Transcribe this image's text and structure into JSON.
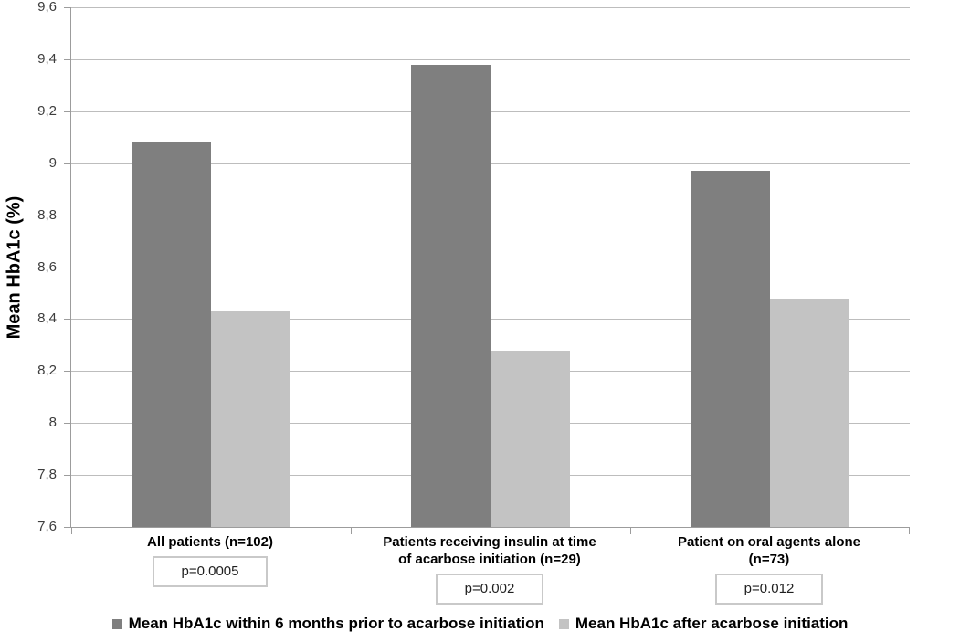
{
  "chart_data": {
    "type": "bar",
    "title": "",
    "xlabel": "",
    "ylabel": "Mean HbA1c (%)",
    "ylim": [
      7.6,
      9.6
    ],
    "grid": true,
    "legend_position": "bottom",
    "decimal_separator": ",",
    "yticks": [
      {
        "value": 7.6,
        "label": "7,6"
      },
      {
        "value": 7.8,
        "label": "7,8"
      },
      {
        "value": 8.0,
        "label": "8"
      },
      {
        "value": 8.2,
        "label": "8,2"
      },
      {
        "value": 8.4,
        "label": "8,4"
      },
      {
        "value": 8.6,
        "label": "8,6"
      },
      {
        "value": 8.8,
        "label": "8,8"
      },
      {
        "value": 9.0,
        "label": "9"
      },
      {
        "value": 9.2,
        "label": "9,2"
      },
      {
        "value": 9.4,
        "label": "9,4"
      },
      {
        "value": 9.6,
        "label": "9,6"
      }
    ],
    "categories": [
      {
        "label": "All patients (n=102)",
        "lines": [
          "All patients (n=102)"
        ],
        "p_label": "p=0.0005"
      },
      {
        "label": "Patients receiving insulin at time of acarbose initiation (n=29)",
        "lines": [
          "Patients receiving insulin at time",
          "of acarbose initiation (n=29)"
        ],
        "p_label": "p=0.002"
      },
      {
        "label": "Patient on oral agents alone (n=73)",
        "lines": [
          "Patient on oral agents alone",
          "(n=73)"
        ],
        "p_label": "p=0.012"
      }
    ],
    "series": [
      {
        "key": "prior",
        "name": "Mean HbA1c within 6 months prior to acarbose initiation",
        "color": "#7f7f7f",
        "values": [
          9.08,
          9.38,
          8.97
        ]
      },
      {
        "key": "after",
        "name": "Mean HbA1c after acarbose initiation",
        "color": "#c3c3c3",
        "values": [
          8.43,
          8.28,
          8.48
        ]
      }
    ],
    "colors": {
      "gridline": "#bdbdbd",
      "axis": "#9c9c9c",
      "tick_text": "#3d3d3d",
      "label_text": "#000000",
      "p_box_border": "#c9c9c9"
    }
  }
}
